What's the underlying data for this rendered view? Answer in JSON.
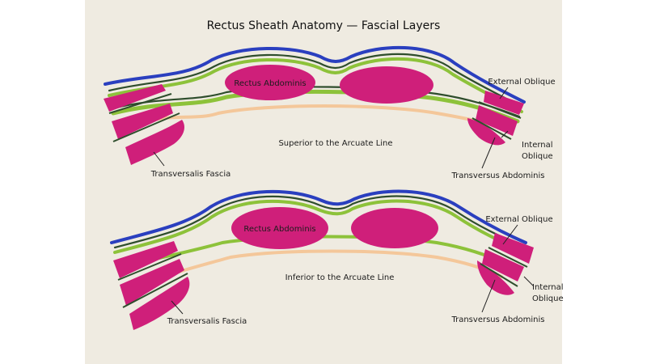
{
  "title": "Rectus Sheath Anatomy — Fascial Layers",
  "colors": {
    "paper": "#efebe1",
    "muscle": "#cf1f7a",
    "fascia_blue": "#2a3fbf",
    "fascia_green": "#8dc23a",
    "fascia_dark": "#2e4d2c",
    "fascia_orange": "#f4c79a",
    "text": "#1c1c1c"
  },
  "diagrams": [
    {
      "caption": "Superior to the Arcuate Line",
      "labels": {
        "rectus": "Rectus Abdominis",
        "external_oblique": "External Oblique",
        "internal_oblique_1": "Internal",
        "internal_oblique_2": "Oblique",
        "transversus": "Transversus Abdominis",
        "transversalis": "Transversalis Fascia"
      }
    },
    {
      "caption": "Inferior to the Arcuate Line",
      "labels": {
        "rectus": "Rectus Abdominis",
        "external_oblique": "External Oblique",
        "internal_oblique_1": "Internal",
        "internal_oblique_2": "Oblique",
        "transversus": "Transversus Abdominis",
        "transversalis": "Transversalis Fascia"
      }
    }
  ]
}
